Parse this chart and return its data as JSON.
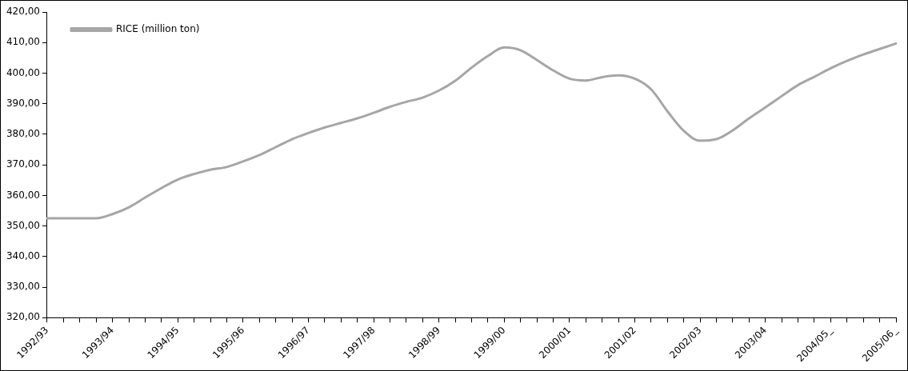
{
  "chart_data": {
    "type": "line",
    "categories": [
      "1992/93",
      null,
      null,
      null,
      "1993/94",
      null,
      null,
      null,
      "1994/95",
      null,
      null,
      null,
      "1995/96",
      null,
      null,
      null,
      "1996/97",
      null,
      null,
      null,
      "1997/98",
      null,
      null,
      null,
      "1998/99",
      null,
      null,
      null,
      "1999/00",
      null,
      null,
      null,
      "2000/01",
      null,
      null,
      null,
      "2001/02",
      null,
      null,
      null,
      "2002/03",
      null,
      null,
      null,
      "2003/04",
      null,
      null,
      null,
      "2004/05_",
      null,
      null,
      null,
      "2005/06_"
    ],
    "series": [
      {
        "name": "RICE (million ton)",
        "color": "#a6a6a6",
        "values": [
          352.5,
          352.5,
          352.5,
          352.5,
          353.9,
          356.1,
          359.3,
          362.4,
          365.2,
          367.0,
          368.4,
          369.3,
          371.1,
          373.2,
          375.8,
          378.4,
          380.4,
          382.2,
          383.7,
          385.2,
          387.0,
          389.0,
          390.6,
          392.0,
          394.3,
          397.5,
          401.8,
          405.6,
          408.4,
          407.5,
          404.3,
          400.9,
          398.2,
          397.6,
          398.7,
          399.3,
          398.2,
          394.7,
          387.5,
          381.1,
          377.9,
          378.4,
          381.3,
          385.2,
          388.8,
          392.5,
          396.1,
          398.8,
          401.6,
          404.0,
          406.1,
          407.9,
          409.7
        ]
      }
    ],
    "ylim": [
      320,
      420
    ],
    "yticks": [
      {
        "value": 320,
        "label": "320,00"
      },
      {
        "value": 330,
        "label": "330,00"
      },
      {
        "value": 340,
        "label": "340,00"
      },
      {
        "value": 350,
        "label": "350,00"
      },
      {
        "value": 360,
        "label": "360,00"
      },
      {
        "value": 370,
        "label": "370,00"
      },
      {
        "value": 380,
        "label": "380,00"
      },
      {
        "value": 390,
        "label": "390,00"
      },
      {
        "value": 400,
        "label": "400,00"
      },
      {
        "value": 410,
        "label": "410,00"
      },
      {
        "value": 420,
        "label": "420,00"
      }
    ],
    "grid": false,
    "legend": "top left",
    "marker": "none",
    "line_style": "solid"
  }
}
